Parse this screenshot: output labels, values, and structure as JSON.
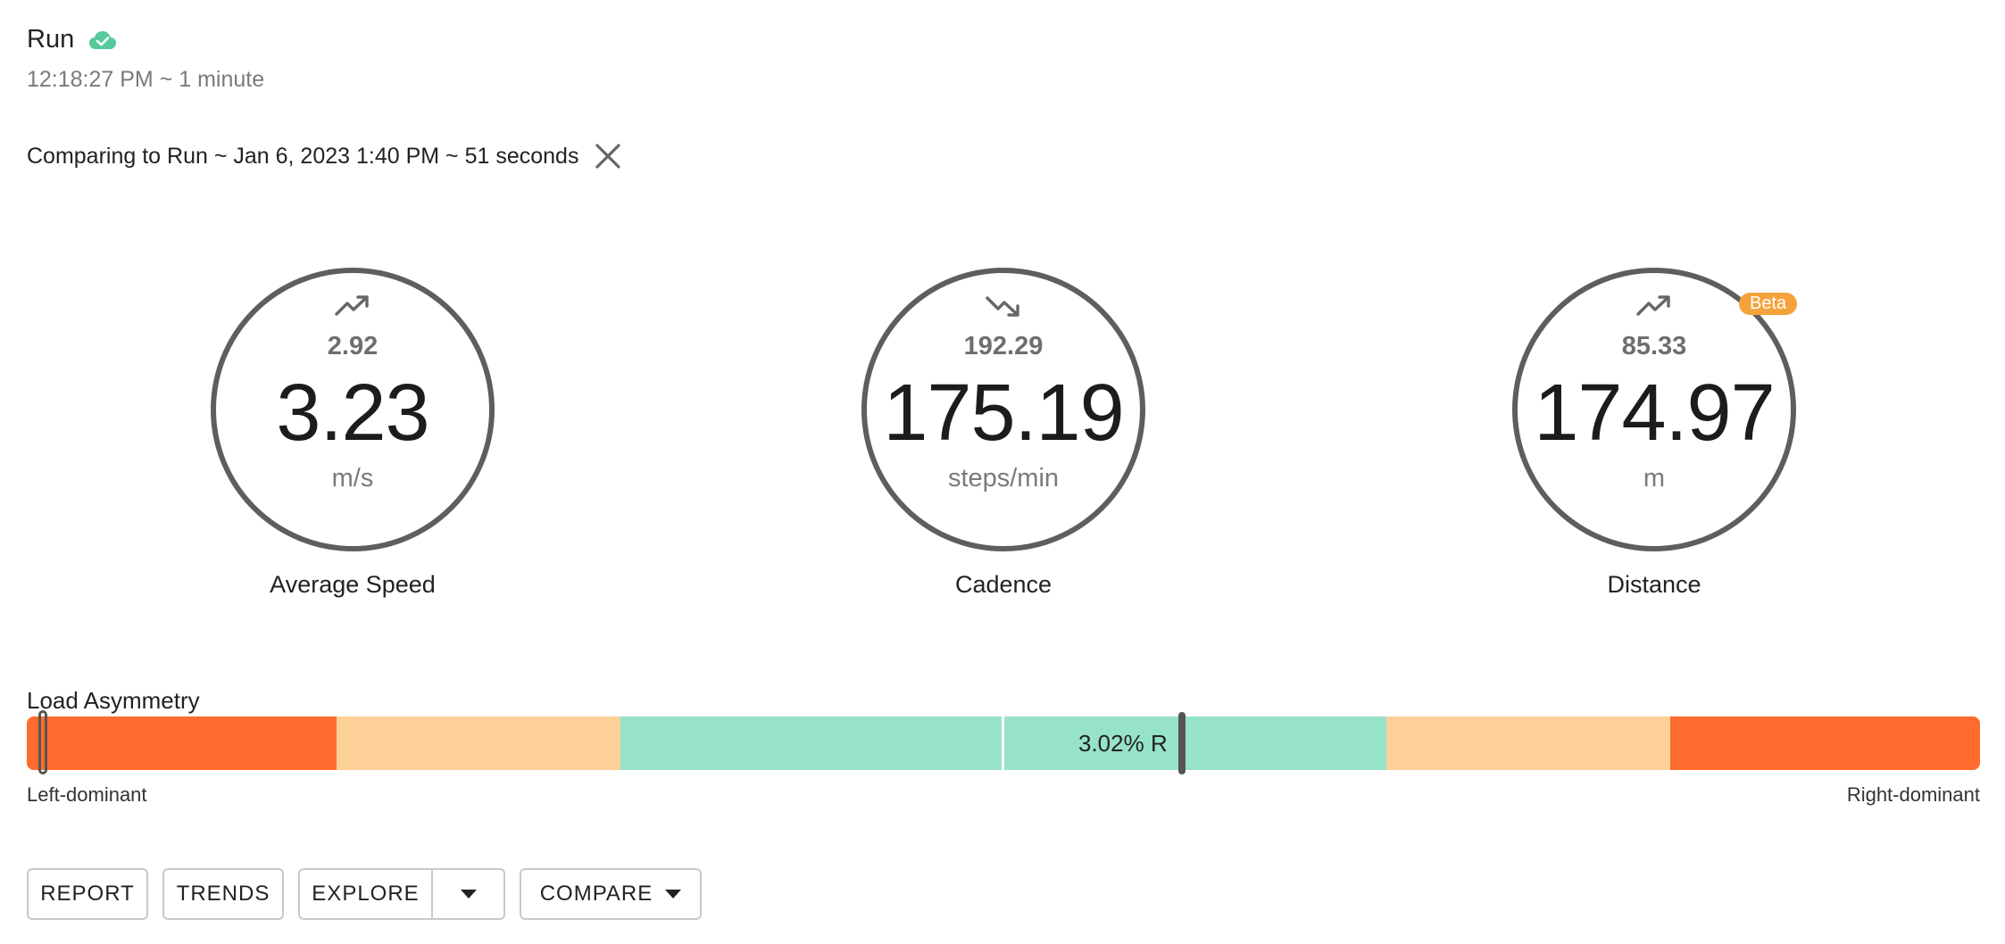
{
  "header": {
    "title": "Run",
    "subtitle": "12:18:27 PM ~ 1 minute",
    "status_icon": "cloud-check-icon",
    "status_color": "#56c99a"
  },
  "comparison": {
    "text": "Comparing to Run ~ Jan 6, 2023 1:40 PM ~ 51 seconds",
    "close_icon": "close-icon"
  },
  "metrics": [
    {
      "label": "Average Speed",
      "value": "3.23",
      "previous": "2.92",
      "unit": "m/s",
      "trend": "up",
      "trend_icon": "trend-up-icon"
    },
    {
      "label": "Cadence",
      "value": "175.19",
      "previous": "192.29",
      "unit": "steps/min",
      "trend": "down",
      "trend_icon": "trend-down-icon"
    },
    {
      "label": "Distance",
      "value": "174.97",
      "previous": "85.33",
      "unit": "m",
      "trend": "up",
      "trend_icon": "trend-up-icon",
      "badge": "Beta"
    }
  ],
  "load_asymmetry": {
    "title": "Load Asymmetry",
    "value_label": "3.02% R",
    "left_label": "Left-dominant",
    "right_label": "Right-dominant",
    "colors": {
      "high": "#ff6b2e",
      "moderate": "#fdd097",
      "normal": "#96e3c8"
    }
  },
  "buttons": {
    "report": "REPORT",
    "trends": "TRENDS",
    "explore": "EXPLORE",
    "compare": "COMPARE",
    "dropdown_icon": "caret-down-icon"
  }
}
